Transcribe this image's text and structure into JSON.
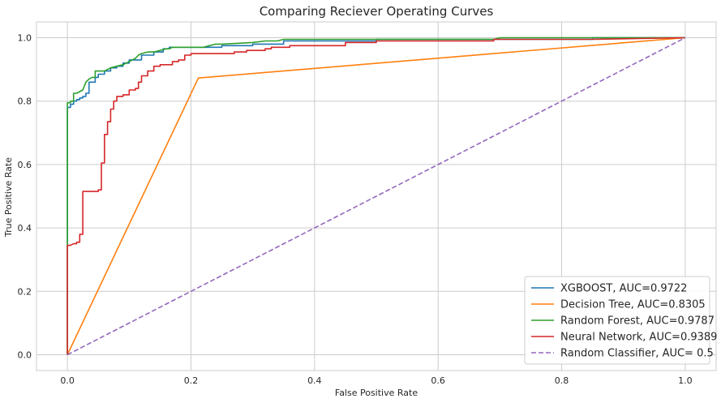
{
  "chart_data": {
    "type": "line",
    "title": "Comparing Reciever Operating Curves",
    "xlabel": "False Positive Rate",
    "ylabel": "True Positive Rate",
    "xlim": [
      -0.05,
      1.05
    ],
    "ylim": [
      -0.05,
      1.05
    ],
    "xticks": [
      "0.0",
      "0.2",
      "0.4",
      "0.6",
      "0.8",
      "1.0"
    ],
    "yticks": [
      "0.0",
      "0.2",
      "0.4",
      "0.6",
      "0.8",
      "1.0"
    ],
    "grid": true,
    "legend_position": "lower-right",
    "series": [
      {
        "name": "XGBOOST, AUC=0.9722",
        "color": "#1f77b4",
        "style": "solid",
        "x": [
          0,
          0,
          0.005,
          0.005,
          0.01,
          0.01,
          0.015,
          0.015,
          0.02,
          0.02,
          0.025,
          0.025,
          0.03,
          0.03,
          0.035,
          0.035,
          0.04,
          0.04,
          0.045,
          0.045,
          0.05,
          0.05,
          0.06,
          0.06,
          0.07,
          0.07,
          0.08,
          0.08,
          0.09,
          0.09,
          0.1,
          0.1,
          0.12,
          0.12,
          0.14,
          0.14,
          0.155,
          0.155,
          0.165,
          0.165,
          0.2,
          0.2,
          0.25,
          0.25,
          0.3,
          0.3,
          0.35,
          0.35,
          0.5,
          0.5,
          0.85,
          0.85,
          1.0
        ],
        "y": [
          0,
          0.78,
          0.78,
          0.79,
          0.79,
          0.8,
          0.8,
          0.805,
          0.805,
          0.81,
          0.81,
          0.815,
          0.815,
          0.825,
          0.825,
          0.86,
          0.86,
          0.86,
          0.86,
          0.875,
          0.875,
          0.885,
          0.885,
          0.895,
          0.895,
          0.905,
          0.905,
          0.91,
          0.91,
          0.92,
          0.92,
          0.93,
          0.93,
          0.945,
          0.945,
          0.955,
          0.955,
          0.965,
          0.965,
          0.97,
          0.97,
          0.97,
          0.97,
          0.975,
          0.975,
          0.98,
          0.98,
          0.99,
          0.99,
          0.995,
          0.995,
          1.0,
          1.0
        ]
      },
      {
        "name": "Decision Tree, AUC=0.8305",
        "color": "#ff7f0e",
        "style": "solid",
        "x": [
          0,
          0.212,
          1.0
        ],
        "y": [
          0,
          0.873,
          1.0
        ]
      },
      {
        "name": "Random Forest, AUC=0.9787",
        "color": "#2ca02c",
        "style": "solid",
        "x": [
          0,
          0,
          0.005,
          0.005,
          0.01,
          0.01,
          0.015,
          0.02,
          0.025,
          0.03,
          0.035,
          0.04,
          0.045,
          0.045,
          0.06,
          0.07,
          0.08,
          0.09,
          0.1,
          0.11,
          0.115,
          0.12,
          0.13,
          0.14,
          0.15,
          0.16,
          0.165,
          0.17,
          0.2,
          0.22,
          0.23,
          0.24,
          0.25,
          0.3,
          0.32,
          0.34,
          0.35,
          0.4,
          0.5,
          0.6,
          0.69,
          0.7,
          0.8,
          0.85,
          0.86,
          1.0
        ],
        "y": [
          0,
          0.795,
          0.795,
          0.8,
          0.8,
          0.825,
          0.825,
          0.83,
          0.835,
          0.86,
          0.87,
          0.875,
          0.875,
          0.895,
          0.895,
          0.905,
          0.91,
          0.915,
          0.925,
          0.935,
          0.945,
          0.95,
          0.955,
          0.955,
          0.96,
          0.965,
          0.965,
          0.97,
          0.97,
          0.97,
          0.975,
          0.98,
          0.98,
          0.985,
          0.99,
          0.99,
          0.995,
          0.995,
          0.995,
          0.995,
          0.995,
          1.0,
          1.0,
          1.0,
          1.0,
          1.0
        ]
      },
      {
        "name": "Neural Network, AUC=0.9389",
        "color": "#d62728",
        "style": "solid",
        "x": [
          0,
          0,
          0.005,
          0.01,
          0.015,
          0.015,
          0.02,
          0.02,
          0.025,
          0.025,
          0.04,
          0.04,
          0.05,
          0.05,
          0.055,
          0.055,
          0.06,
          0.06,
          0.065,
          0.065,
          0.07,
          0.07,
          0.075,
          0.075,
          0.08,
          0.08,
          0.09,
          0.09,
          0.1,
          0.1,
          0.11,
          0.11,
          0.115,
          0.115,
          0.12,
          0.12,
          0.13,
          0.13,
          0.14,
          0.14,
          0.15,
          0.15,
          0.17,
          0.17,
          0.18,
          0.18,
          0.19,
          0.19,
          0.2,
          0.2,
          0.27,
          0.27,
          0.29,
          0.29,
          0.32,
          0.32,
          0.33,
          0.33,
          0.36,
          0.36,
          0.45,
          0.45,
          0.5,
          0.5,
          0.69,
          0.69,
          0.75,
          0.85,
          1.0
        ],
        "y": [
          0,
          0.345,
          0.345,
          0.35,
          0.35,
          0.355,
          0.355,
          0.38,
          0.38,
          0.515,
          0.515,
          0.515,
          0.515,
          0.52,
          0.52,
          0.605,
          0.605,
          0.695,
          0.695,
          0.735,
          0.735,
          0.775,
          0.775,
          0.8,
          0.8,
          0.815,
          0.815,
          0.82,
          0.82,
          0.835,
          0.835,
          0.84,
          0.84,
          0.86,
          0.86,
          0.88,
          0.88,
          0.895,
          0.895,
          0.91,
          0.91,
          0.915,
          0.915,
          0.925,
          0.925,
          0.93,
          0.93,
          0.945,
          0.945,
          0.95,
          0.95,
          0.955,
          0.955,
          0.96,
          0.96,
          0.965,
          0.965,
          0.97,
          0.97,
          0.975,
          0.975,
          0.985,
          0.985,
          0.99,
          0.99,
          0.995,
          0.995,
          0.995,
          1.0
        ]
      },
      {
        "name": "Random Classifier, AUC= 0.5",
        "color": "#9467bd",
        "style": "dashed",
        "x": [
          0,
          1.0
        ],
        "y": [
          0,
          1.0
        ]
      }
    ]
  }
}
